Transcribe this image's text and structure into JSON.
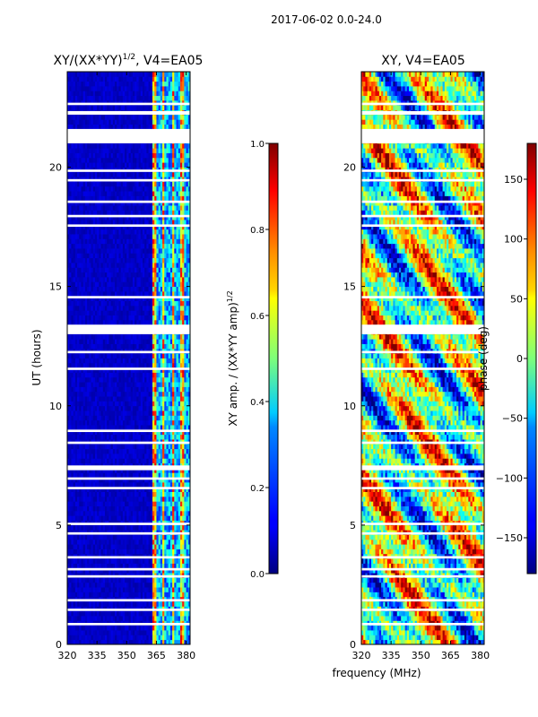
{
  "figure": {
    "suptitle": "2017-06-02 0.0-24.0",
    "xlabel_shared": "frequency (MHz)"
  },
  "chart_data": [
    {
      "type": "heatmap",
      "title": "XY/(XX*YY)^{1/2}, V4=EA05",
      "title_main": "XY/(XX*YY)",
      "title_exp": "1/2",
      "title_tail": ", V4=EA05",
      "xlabel": "",
      "ylabel": "UT (hours)",
      "xlim": [
        320,
        382
      ],
      "ylim": [
        0,
        24
      ],
      "xticks": [
        320,
        335,
        350,
        365,
        380
      ],
      "yticks": [
        0,
        5,
        10,
        15,
        20
      ],
      "colorbar": {
        "label": "XY amp. / (XX*YY amp)^{1/2}",
        "label_main": "XY amp. / (XX*YY amp)",
        "label_exp": "1/2",
        "range": [
          0.0,
          1.0
        ],
        "ticks": [
          "0.0",
          "0.2",
          "0.4",
          "0.6",
          "0.8",
          "1.0"
        ],
        "colormap": "jet"
      }
    },
    {
      "type": "heatmap",
      "title": "XY, V4=EA05",
      "xlabel": "frequency (MHz)",
      "ylabel": "",
      "xlim": [
        320,
        382
      ],
      "ylim": [
        0,
        24
      ],
      "xticks": [
        320,
        335,
        350,
        365,
        380
      ],
      "yticks": [
        0,
        5,
        10,
        15,
        20
      ],
      "colorbar": {
        "label": "phase (deg)",
        "range": [
          -180,
          180
        ],
        "ticks": [
          "−150",
          "−100",
          "−50",
          "0",
          "50",
          "100",
          "150"
        ],
        "tick_values": [
          -150,
          -100,
          -50,
          0,
          50,
          100,
          150
        ],
        "colormap": "jet"
      }
    }
  ]
}
